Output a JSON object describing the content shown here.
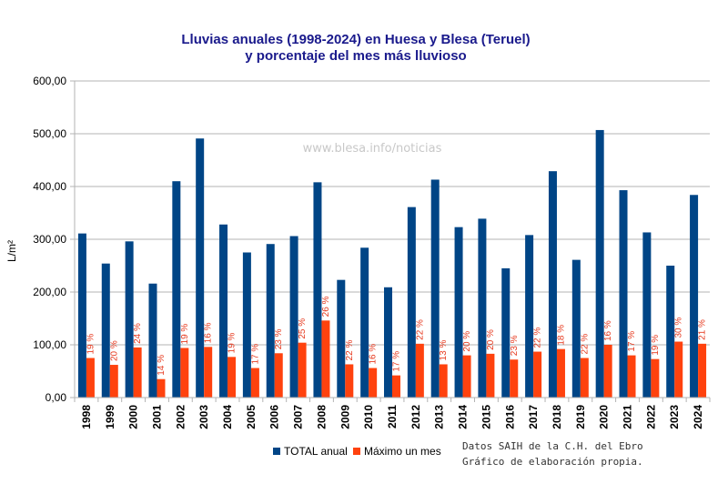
{
  "colors": {
    "total": "#004586",
    "max": "#ff420e",
    "axis": "#b3b3b3",
    "title": "#1a1a8c",
    "label": "#e63a1f"
  },
  "watermark": "www.blesa.info/noticias",
  "note": {
    "line1": "Datos SAIH de la C.H. del Ebro",
    "line2": "Gráfico de elaboración propia."
  },
  "chart_data": {
    "type": "bar",
    "title": "Lluvias anuales (1998-2024) en Huesa y Blesa (Teruel)",
    "subtitle": "y porcentaje del mes más lluvioso",
    "ylabel": "L/m²",
    "xlabel": "",
    "ylim": [
      0,
      600
    ],
    "yticks": [
      "0,00",
      "100,00",
      "200,00",
      "300,00",
      "400,00",
      "500,00",
      "600,00"
    ],
    "grid": true,
    "legend_position": "bottom",
    "categories": [
      "1998",
      "1999",
      "2000",
      "2001",
      "2002",
      "2003",
      "2004",
      "2005",
      "2006",
      "2007",
      "2008",
      "2009",
      "2010",
      "2011",
      "2012",
      "2013",
      "2014",
      "2015",
      "2016",
      "2017",
      "2018",
      "2019",
      "2020",
      "2021",
      "2022",
      "2023",
      "2024"
    ],
    "series": [
      {
        "name": "TOTAL anual",
        "values": [
          311,
          254,
          296,
          216,
          410,
          491,
          328,
          275,
          291,
          306,
          408,
          223,
          284,
          209,
          361,
          413,
          323,
          339,
          245,
          308,
          429,
          261,
          507,
          393,
          313,
          250,
          384
        ]
      },
      {
        "name": "Máximo un mes",
        "values": [
          75,
          62,
          95,
          35,
          94,
          96,
          77,
          56,
          84,
          104,
          146,
          63,
          56,
          42,
          102,
          63,
          80,
          83,
          72,
          87,
          92,
          75,
          100,
          80,
          73,
          106,
          102
        ],
        "labels": [
          "19 %",
          "20 %",
          "24 %",
          "14 %",
          "19 %",
          "16 %",
          "19 %",
          "17 %",
          "23 %",
          "25 %",
          "26 %",
          "22 %",
          "16 %",
          "17 %",
          "22 %",
          "13 %",
          "20 %",
          "20 %",
          "23 %",
          "22 %",
          "18 %",
          "22 %",
          "16 %",
          "17 %",
          "19 %",
          "30 %",
          "21 %"
        ]
      }
    ]
  }
}
